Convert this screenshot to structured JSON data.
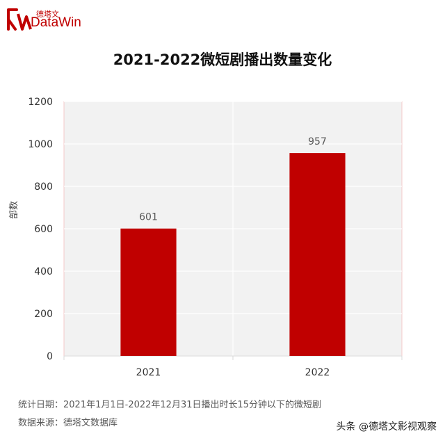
{
  "brand": {
    "name_cn": "德塔文",
    "name_en": "DataWin"
  },
  "chart_data": {
    "type": "bar",
    "title": "2021-2022微短剧播出数量变化",
    "ylabel": "部数",
    "xlabel": "",
    "categories": [
      "2021",
      "2022"
    ],
    "values": [
      601,
      957
    ],
    "ylim": [
      0,
      1200
    ],
    "yticks": [
      0,
      200,
      400,
      600,
      800,
      1000,
      1200
    ],
    "grid": true,
    "bar_color": "#c00000",
    "plot_bg": "#f2f2f2"
  },
  "notes": {
    "period": "统计日期：2021年1月1日-2022年12月31日播出时长15分钟以下的微短剧",
    "source": "数据来源：德塔文数据库"
  },
  "watermark": "头条 @德塔文影视观察"
}
